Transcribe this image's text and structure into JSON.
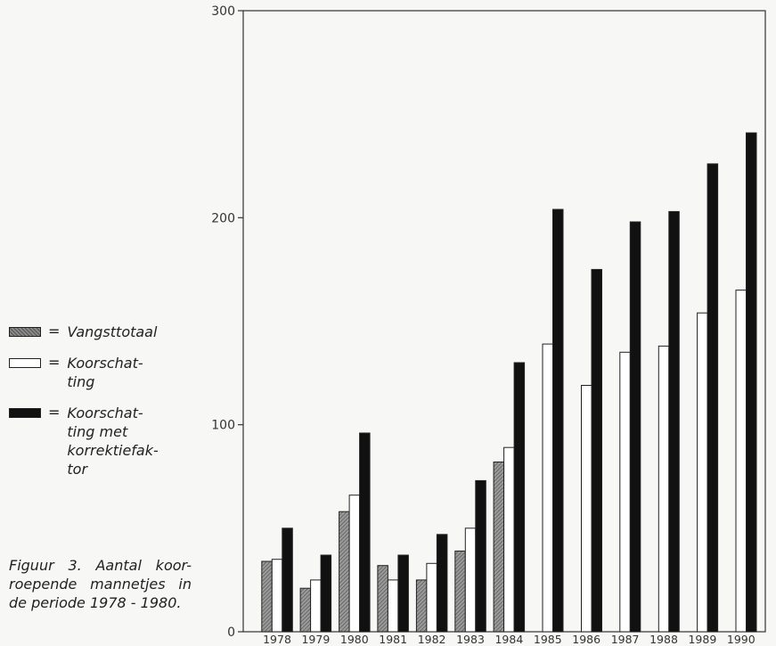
{
  "chart_data": {
    "type": "bar",
    "categories": [
      "1978",
      "1979",
      "1980",
      "1981",
      "1982",
      "1983",
      "1984",
      "1985",
      "1986",
      "1987",
      "1988",
      "1989",
      "1990"
    ],
    "series": [
      {
        "name": "Vangsttotaal",
        "values": [
          34,
          21,
          58,
          32,
          25,
          39,
          82,
          null,
          null,
          null,
          null,
          null,
          null
        ]
      },
      {
        "name": "Koorschatting",
        "values": [
          35,
          25,
          66,
          25,
          33,
          50,
          89,
          139,
          119,
          135,
          138,
          154,
          165
        ]
      },
      {
        "name": "Koorschatting met korrektiefaktor",
        "values": [
          50,
          37,
          96,
          37,
          47,
          73,
          130,
          204,
          175,
          198,
          203,
          226,
          241
        ]
      }
    ],
    "yticks": [
      "0",
      "100",
      "200",
      "300"
    ],
    "ylim": [
      0,
      300
    ],
    "xlabel": "",
    "ylabel": "",
    "title": "",
    "colors": {
      "vangsttotaal": "#7a7a7a",
      "koorschatting": "#ffffff",
      "korrektie": "#111111"
    }
  },
  "legend": {
    "items": [
      {
        "symbol": "=",
        "label": "Vangsttotaal"
      },
      {
        "symbol": "=",
        "label": "Koorschat-\nting"
      },
      {
        "symbol": "=",
        "label": "Koorschat-\nting met\nkorrektiefak-\ntor"
      }
    ]
  },
  "caption": "Figuur 3. Aantal koor-roepende mannetjes in de periode 1978 - 1980."
}
